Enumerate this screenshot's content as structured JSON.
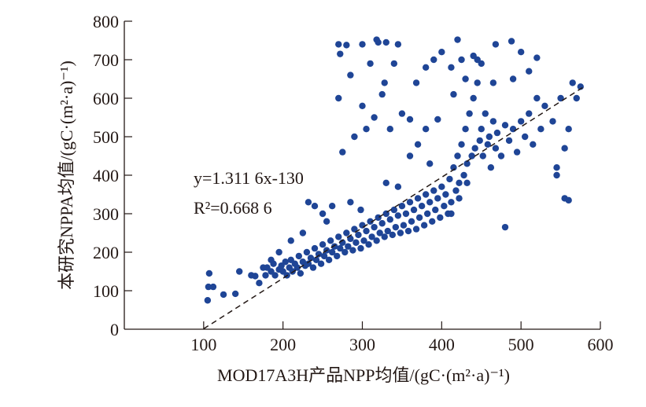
{
  "chart_data": {
    "type": "scatter",
    "title": "",
    "xlabel": "MOD17A3H产品NPP均值/(gC·(m²·a)⁻¹)",
    "ylabel": "本研究NPPA均值/(gC·(m²·a)⁻¹)",
    "xlim": [
      0,
      600
    ],
    "ylim": [
      0,
      800
    ],
    "xticks": [
      "100",
      "200",
      "300",
      "400",
      "500",
      "600"
    ],
    "yticks": [
      "0",
      "100",
      "200",
      "300",
      "400",
      "500",
      "600",
      "700",
      "800"
    ],
    "grid": false,
    "point_color": "#1f4596",
    "annotation": {
      "equation": "y=1.311 6x-130",
      "r2": "R²=0.668 6"
    },
    "fit_line": {
      "slope": 1.3116,
      "intercept": -130,
      "x_range": [
        100,
        578
      ],
      "style": "dashed"
    },
    "points": [
      [
        105,
        75
      ],
      [
        106,
        110
      ],
      [
        107,
        145
      ],
      [
        112,
        110
      ],
      [
        125,
        90
      ],
      [
        140,
        92
      ],
      [
        145,
        150
      ],
      [
        160,
        140
      ],
      [
        165,
        138
      ],
      [
        170,
        120
      ],
      [
        178,
        140
      ],
      [
        180,
        160
      ],
      [
        185,
        150
      ],
      [
        188,
        170
      ],
      [
        190,
        140
      ],
      [
        195,
        155
      ],
      [
        198,
        165
      ],
      [
        200,
        150
      ],
      [
        203,
        175
      ],
      [
        205,
        140
      ],
      [
        208,
        160
      ],
      [
        210,
        180
      ],
      [
        212,
        150
      ],
      [
        215,
        170
      ],
      [
        218,
        160
      ],
      [
        220,
        190
      ],
      [
        222,
        145
      ],
      [
        225,
        175
      ],
      [
        228,
        165
      ],
      [
        230,
        200
      ],
      [
        232,
        170
      ],
      [
        235,
        185
      ],
      [
        238,
        160
      ],
      [
        240,
        210
      ],
      [
        242,
        180
      ],
      [
        245,
        195
      ],
      [
        248,
        170
      ],
      [
        250,
        220
      ],
      [
        252,
        190
      ],
      [
        255,
        205
      ],
      [
        258,
        180
      ],
      [
        260,
        230
      ],
      [
        262,
        200
      ],
      [
        265,
        215
      ],
      [
        268,
        190
      ],
      [
        270,
        240
      ],
      [
        272,
        210
      ],
      [
        275,
        225
      ],
      [
        278,
        200
      ],
      [
        280,
        250
      ],
      [
        282,
        215
      ],
      [
        285,
        235
      ],
      [
        288,
        205
      ],
      [
        290,
        260
      ],
      [
        292,
        225
      ],
      [
        295,
        245
      ],
      [
        298,
        210
      ],
      [
        300,
        270
      ],
      [
        302,
        230
      ],
      [
        305,
        255
      ],
      [
        308,
        220
      ],
      [
        310,
        280
      ],
      [
        312,
        240
      ],
      [
        315,
        265
      ],
      [
        318,
        230
      ],
      [
        320,
        290
      ],
      [
        322,
        250
      ],
      [
        325,
        275
      ],
      [
        328,
        240
      ],
      [
        330,
        300
      ],
      [
        332,
        255
      ],
      [
        335,
        285
      ],
      [
        338,
        245
      ],
      [
        340,
        310
      ],
      [
        342,
        265
      ],
      [
        345,
        295
      ],
      [
        348,
        250
      ],
      [
        350,
        320
      ],
      [
        352,
        270
      ],
      [
        355,
        300
      ],
      [
        358,
        255
      ],
      [
        360,
        330
      ],
      [
        362,
        280
      ],
      [
        365,
        310
      ],
      [
        368,
        260
      ],
      [
        370,
        340
      ],
      [
        372,
        290
      ],
      [
        375,
        320
      ],
      [
        378,
        270
      ],
      [
        380,
        350
      ],
      [
        382,
        300
      ],
      [
        385,
        330
      ],
      [
        388,
        280
      ],
      [
        390,
        360
      ],
      [
        392,
        310
      ],
      [
        395,
        340
      ],
      [
        398,
        290
      ],
      [
        400,
        370
      ],
      [
        403,
        320
      ],
      [
        405,
        350
      ],
      [
        408,
        300
      ],
      [
        410,
        390
      ],
      [
        412,
        330
      ],
      [
        415,
        420
      ],
      [
        418,
        360
      ],
      [
        420,
        450
      ],
      [
        422,
        380
      ],
      [
        425,
        480
      ],
      [
        428,
        400
      ],
      [
        430,
        520
      ],
      [
        432,
        430
      ],
      [
        435,
        560
      ],
      [
        438,
        450
      ],
      [
        440,
        600
      ],
      [
        442,
        470
      ],
      [
        445,
        640
      ],
      [
        448,
        490
      ],
      [
        450,
        520
      ],
      [
        452,
        450
      ],
      [
        455,
        560
      ],
      [
        458,
        480
      ],
      [
        460,
        500
      ],
      [
        462,
        420
      ],
      [
        465,
        540
      ],
      [
        468,
        470
      ],
      [
        470,
        510
      ],
      [
        475,
        450
      ],
      [
        480,
        530
      ],
      [
        485,
        490
      ],
      [
        490,
        520
      ],
      [
        495,
        460
      ],
      [
        500,
        540
      ],
      [
        505,
        500
      ],
      [
        510,
        560
      ],
      [
        515,
        480
      ],
      [
        520,
        600
      ],
      [
        525,
        520
      ],
      [
        530,
        580
      ],
      [
        540,
        540
      ],
      [
        545,
        420
      ],
      [
        550,
        600
      ],
      [
        555,
        470
      ],
      [
        560,
        520
      ],
      [
        565,
        640
      ],
      [
        570,
        600
      ],
      [
        575,
        630
      ],
      [
        555,
        340
      ],
      [
        560,
        335
      ],
      [
        545,
        400
      ],
      [
        480,
        265
      ],
      [
        432,
        380
      ],
      [
        422,
        340
      ],
      [
        412,
        300
      ],
      [
        270,
        740
      ],
      [
        280,
        738
      ],
      [
        272,
        715
      ],
      [
        300,
        740
      ],
      [
        318,
        752
      ],
      [
        320,
        745
      ],
      [
        330,
        745
      ],
      [
        340,
        690
      ],
      [
        345,
        740
      ],
      [
        328,
        640
      ],
      [
        310,
        690
      ],
      [
        285,
        660
      ],
      [
        300,
        580
      ],
      [
        315,
        550
      ],
      [
        325,
        610
      ],
      [
        335,
        520
      ],
      [
        350,
        560
      ],
      [
        360,
        545
      ],
      [
        270,
        600
      ],
      [
        275,
        460
      ],
      [
        290,
        500
      ],
      [
        305,
        520
      ],
      [
        368,
        640
      ],
      [
        380,
        680
      ],
      [
        390,
        700
      ],
      [
        400,
        720
      ],
      [
        412,
        680
      ],
      [
        420,
        752
      ],
      [
        425,
        700
      ],
      [
        440,
        710
      ],
      [
        450,
        690
      ],
      [
        468,
        740
      ],
      [
        488,
        748
      ],
      [
        500,
        720
      ],
      [
        520,
        705
      ],
      [
        510,
        670
      ],
      [
        490,
        650
      ],
      [
        465,
        640
      ],
      [
        430,
        650
      ],
      [
        445,
        700
      ],
      [
        415,
        610
      ],
      [
        395,
        545
      ],
      [
        380,
        520
      ],
      [
        370,
        480
      ],
      [
        360,
        450
      ],
      [
        385,
        430
      ],
      [
        240,
        320
      ],
      [
        232,
        330
      ],
      [
        250,
        300
      ],
      [
        262,
        320
      ],
      [
        285,
        330
      ],
      [
        298,
        310
      ],
      [
        345,
        370
      ],
      [
        330,
        380
      ],
      [
        195,
        200
      ],
      [
        185,
        180
      ],
      [
        175,
        160
      ],
      [
        210,
        230
      ],
      [
        225,
        250
      ],
      [
        255,
        280
      ]
    ]
  }
}
